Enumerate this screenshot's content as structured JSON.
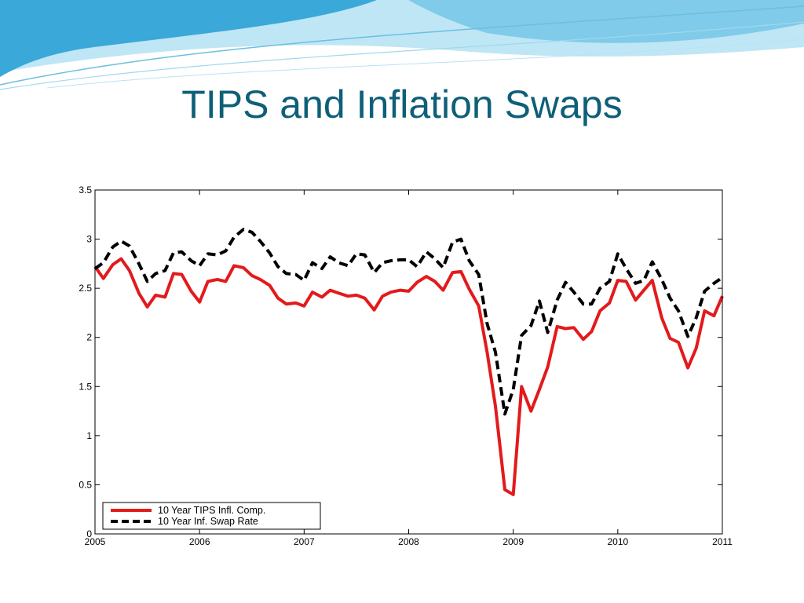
{
  "slide": {
    "title": "TIPS and Inflation Swaps"
  },
  "colors": {
    "title": "#0e5f78",
    "wave_dark": "#2a9fd0",
    "wave_light": "#8ed3ee",
    "series_tips": "#e31a1c",
    "series_swap": "#000000"
  },
  "chart_data": {
    "type": "line",
    "title": "",
    "xlabel": "",
    "ylabel": "",
    "xlim": [
      2005,
      2011
    ],
    "ylim": [
      0,
      3.5
    ],
    "x_ticks": [
      "2005",
      "2006",
      "2007",
      "2008",
      "2009",
      "2010",
      "2011"
    ],
    "y_ticks": [
      "0",
      "0.5",
      "1",
      "1.5",
      "2",
      "2.5",
      "3",
      "3.5"
    ],
    "grid": false,
    "legend_position": "bottom-left",
    "series": [
      {
        "name": "10 Year TIPS Infl. Comp.",
        "color": "#e31a1c",
        "style": "solid",
        "points": [
          [
            2005.0,
            2.72
          ],
          [
            2005.08,
            2.6
          ],
          [
            2005.17,
            2.74
          ],
          [
            2005.25,
            2.8
          ],
          [
            2005.33,
            2.68
          ],
          [
            2005.42,
            2.45
          ],
          [
            2005.5,
            2.31
          ],
          [
            2005.58,
            2.43
          ],
          [
            2005.67,
            2.41
          ],
          [
            2005.75,
            2.65
          ],
          [
            2005.83,
            2.64
          ],
          [
            2005.92,
            2.47
          ],
          [
            2006.0,
            2.36
          ],
          [
            2006.08,
            2.57
          ],
          [
            2006.17,
            2.59
          ],
          [
            2006.25,
            2.57
          ],
          [
            2006.33,
            2.73
          ],
          [
            2006.42,
            2.71
          ],
          [
            2006.5,
            2.63
          ],
          [
            2006.58,
            2.59
          ],
          [
            2006.67,
            2.53
          ],
          [
            2006.75,
            2.4
          ],
          [
            2006.83,
            2.34
          ],
          [
            2006.92,
            2.35
          ],
          [
            2007.0,
            2.32
          ],
          [
            2007.08,
            2.46
          ],
          [
            2007.17,
            2.41
          ],
          [
            2007.25,
            2.48
          ],
          [
            2007.33,
            2.45
          ],
          [
            2007.42,
            2.42
          ],
          [
            2007.5,
            2.43
          ],
          [
            2007.58,
            2.4
          ],
          [
            2007.67,
            2.28
          ],
          [
            2007.75,
            2.42
          ],
          [
            2007.83,
            2.46
          ],
          [
            2007.92,
            2.48
          ],
          [
            2008.0,
            2.47
          ],
          [
            2008.08,
            2.56
          ],
          [
            2008.17,
            2.62
          ],
          [
            2008.25,
            2.57
          ],
          [
            2008.33,
            2.48
          ],
          [
            2008.42,
            2.66
          ],
          [
            2008.5,
            2.67
          ],
          [
            2008.58,
            2.49
          ],
          [
            2008.67,
            2.32
          ],
          [
            2008.75,
            1.85
          ],
          [
            2008.83,
            1.3
          ],
          [
            2008.92,
            0.45
          ],
          [
            2009.0,
            0.4
          ],
          [
            2009.08,
            1.5
          ],
          [
            2009.17,
            1.25
          ],
          [
            2009.25,
            1.47
          ],
          [
            2009.33,
            1.7
          ],
          [
            2009.42,
            2.11
          ],
          [
            2009.5,
            2.09
          ],
          [
            2009.58,
            2.1
          ],
          [
            2009.67,
            1.98
          ],
          [
            2009.75,
            2.06
          ],
          [
            2009.83,
            2.27
          ],
          [
            2009.92,
            2.35
          ],
          [
            2010.0,
            2.58
          ],
          [
            2010.08,
            2.57
          ],
          [
            2010.17,
            2.38
          ],
          [
            2010.25,
            2.48
          ],
          [
            2010.33,
            2.58
          ],
          [
            2010.42,
            2.2
          ],
          [
            2010.5,
            1.99
          ],
          [
            2010.58,
            1.95
          ],
          [
            2010.67,
            1.69
          ],
          [
            2010.75,
            1.89
          ],
          [
            2010.83,
            2.27
          ],
          [
            2010.92,
            2.22
          ],
          [
            2011.0,
            2.42
          ]
        ]
      },
      {
        "name": "10 Year Inf. Swap Rate",
        "color": "#000000",
        "style": "dashed",
        "points": [
          [
            2005.0,
            2.7
          ],
          [
            2005.08,
            2.76
          ],
          [
            2005.17,
            2.92
          ],
          [
            2005.25,
            2.98
          ],
          [
            2005.33,
            2.93
          ],
          [
            2005.42,
            2.75
          ],
          [
            2005.5,
            2.57
          ],
          [
            2005.58,
            2.65
          ],
          [
            2005.67,
            2.68
          ],
          [
            2005.75,
            2.86
          ],
          [
            2005.83,
            2.87
          ],
          [
            2005.92,
            2.78
          ],
          [
            2006.0,
            2.73
          ],
          [
            2006.08,
            2.85
          ],
          [
            2006.17,
            2.84
          ],
          [
            2006.25,
            2.88
          ],
          [
            2006.33,
            3.02
          ],
          [
            2006.42,
            3.1
          ],
          [
            2006.5,
            3.07
          ],
          [
            2006.58,
            2.98
          ],
          [
            2006.67,
            2.86
          ],
          [
            2006.75,
            2.72
          ],
          [
            2006.83,
            2.65
          ],
          [
            2006.92,
            2.64
          ],
          [
            2007.0,
            2.58
          ],
          [
            2007.08,
            2.76
          ],
          [
            2007.17,
            2.7
          ],
          [
            2007.25,
            2.82
          ],
          [
            2007.33,
            2.76
          ],
          [
            2007.42,
            2.73
          ],
          [
            2007.5,
            2.85
          ],
          [
            2007.58,
            2.84
          ],
          [
            2007.67,
            2.66
          ],
          [
            2007.75,
            2.76
          ],
          [
            2007.83,
            2.78
          ],
          [
            2007.92,
            2.79
          ],
          [
            2008.0,
            2.79
          ],
          [
            2008.08,
            2.72
          ],
          [
            2008.17,
            2.87
          ],
          [
            2008.25,
            2.8
          ],
          [
            2008.33,
            2.71
          ],
          [
            2008.42,
            2.97
          ],
          [
            2008.5,
            3.0
          ],
          [
            2008.58,
            2.78
          ],
          [
            2008.67,
            2.64
          ],
          [
            2008.75,
            2.14
          ],
          [
            2008.83,
            1.85
          ],
          [
            2008.92,
            1.22
          ],
          [
            2009.0,
            1.47
          ],
          [
            2009.08,
            2.02
          ],
          [
            2009.17,
            2.12
          ],
          [
            2009.25,
            2.37
          ],
          [
            2009.33,
            2.05
          ],
          [
            2009.42,
            2.38
          ],
          [
            2009.5,
            2.56
          ],
          [
            2009.58,
            2.46
          ],
          [
            2009.67,
            2.34
          ],
          [
            2009.75,
            2.34
          ],
          [
            2009.83,
            2.5
          ],
          [
            2009.92,
            2.57
          ],
          [
            2010.0,
            2.85
          ],
          [
            2010.08,
            2.7
          ],
          [
            2010.17,
            2.55
          ],
          [
            2010.25,
            2.58
          ],
          [
            2010.33,
            2.77
          ],
          [
            2010.42,
            2.59
          ],
          [
            2010.5,
            2.4
          ],
          [
            2010.58,
            2.27
          ],
          [
            2010.67,
            2.01
          ],
          [
            2010.75,
            2.2
          ],
          [
            2010.83,
            2.47
          ],
          [
            2010.92,
            2.55
          ],
          [
            2011.0,
            2.61
          ]
        ]
      }
    ]
  }
}
